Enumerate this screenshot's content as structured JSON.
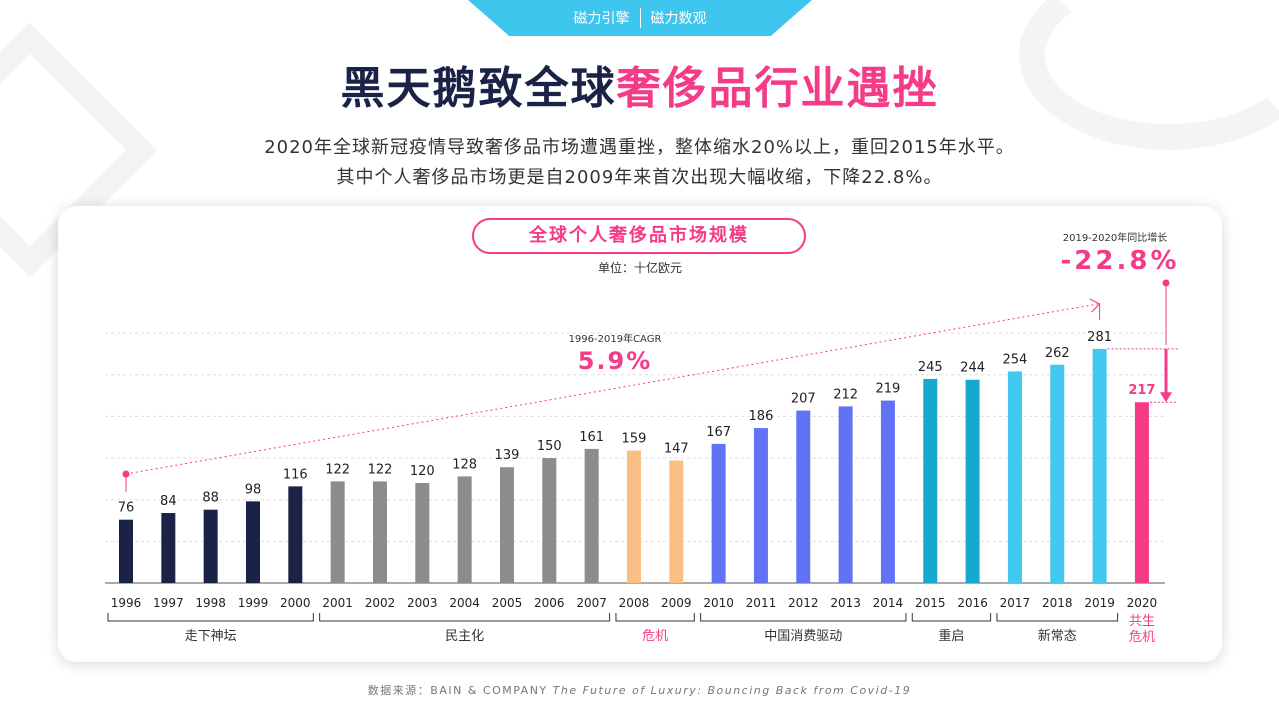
{
  "banner": {
    "brand1": "磁力引擎",
    "brand2": "磁力数观"
  },
  "title": {
    "part1": "黑天鹅致全球",
    "part2": "奢侈品行业遇挫"
  },
  "subtitle": [
    "2020年全球新冠疫情导致奢侈品市场遭遇重挫，整体缩水20%以上，重回2015年水平。",
    "其中个人奢侈品市场更是自2009年来首次出现大幅收缩，下降22.8%。"
  ],
  "chart_data": {
    "type": "bar",
    "title": "全球个人奢侈品市场规模",
    "unit": "单位：十亿欧元",
    "categories": [
      "1996",
      "1997",
      "1998",
      "1999",
      "2000",
      "2001",
      "2002",
      "2003",
      "2004",
      "2005",
      "2006",
      "2007",
      "2008",
      "2009",
      "2010",
      "2011",
      "2012",
      "2013",
      "2014",
      "2015",
      "2016",
      "2017",
      "2018",
      "2019",
      "2020"
    ],
    "values": [
      76,
      84,
      88,
      98,
      116,
      122,
      122,
      120,
      128,
      139,
      150,
      161,
      159,
      147,
      167,
      186,
      207,
      212,
      219,
      245,
      244,
      254,
      262,
      281,
      217
    ],
    "ylim": [
      0,
      300
    ],
    "grid": true,
    "groups": [
      {
        "label": "走下神坛",
        "from": "1996",
        "to": "2000",
        "color": "#1a2346",
        "label_color": "#333333"
      },
      {
        "label": "民主化",
        "from": "2001",
        "to": "2007",
        "color": "#8c8c8c",
        "label_color": "#333333"
      },
      {
        "label": "危机",
        "from": "2008",
        "to": "2009",
        "color": "#fbbf85",
        "label_color": "#f53a87"
      },
      {
        "label": "中国消费驱动",
        "from": "2010",
        "to": "2014",
        "color": "#6272f5",
        "label_color": "#333333"
      },
      {
        "label": "重启",
        "from": "2015",
        "to": "2016",
        "color": "#17a8d0",
        "label_color": "#333333"
      },
      {
        "label": "新常态",
        "from": "2017",
        "to": "2019",
        "color": "#40c8ef",
        "label_color": "#333333"
      },
      {
        "label": "共生危机",
        "from": "2020",
        "to": "2020",
        "color": "#f53a87",
        "label_color": "#f53a87"
      }
    ],
    "annotations": {
      "cagr_label": "1996-2019年CAGR",
      "cagr_value": "5.9%",
      "yoy_label": "2019-2020年同比增长",
      "yoy_value": "-22.8%"
    }
  },
  "source": {
    "prefix": "数据来源：BAIN & COMPANY",
    "title": "The Future of Luxury: Bouncing Back from Covid-19"
  }
}
